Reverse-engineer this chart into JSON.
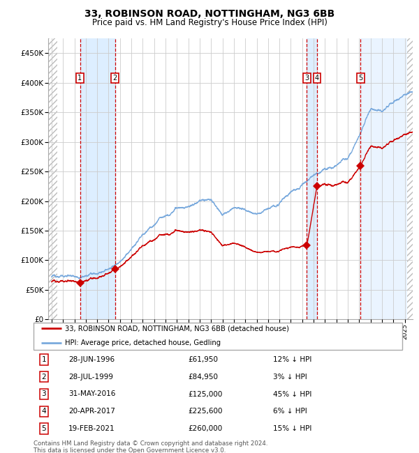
{
  "title1": "33, ROBINSON ROAD, NOTTINGHAM, NG3 6BB",
  "title2": "Price paid vs. HM Land Registry's House Price Index (HPI)",
  "ylabel_ticks": [
    "£0",
    "£50K",
    "£100K",
    "£150K",
    "£200K",
    "£250K",
    "£300K",
    "£350K",
    "£400K",
    "£450K"
  ],
  "ytick_values": [
    0,
    50000,
    100000,
    150000,
    200000,
    250000,
    300000,
    350000,
    400000,
    450000
  ],
  "ylim": [
    0,
    475000
  ],
  "xlim_start": 1993.7,
  "xlim_end": 2025.7,
  "transactions": [
    {
      "num": 1,
      "date_label": "28-JUN-1996",
      "x": 1996.49,
      "price": 61950,
      "pct": "12%"
    },
    {
      "num": 2,
      "date_label": "28-JUL-1999",
      "x": 1999.57,
      "price": 84950,
      "pct": "3%"
    },
    {
      "num": 3,
      "date_label": "31-MAY-2016",
      "x": 2016.41,
      "price": 125000,
      "pct": "45%"
    },
    {
      "num": 4,
      "date_label": "20-APR-2017",
      "x": 2017.3,
      "price": 225600,
      "pct": "6%"
    },
    {
      "num": 5,
      "date_label": "19-FEB-2021",
      "x": 2021.13,
      "price": 260000,
      "pct": "15%"
    }
  ],
  "legend_line1": "33, ROBINSON ROAD, NOTTINGHAM, NG3 6BB (detached house)",
  "legend_line2": "HPI: Average price, detached house, Gedling",
  "footer": "Contains HM Land Registry data © Crown copyright and database right 2024.\nThis data is licensed under the Open Government Licence v3.0.",
  "line_color_red": "#cc0000",
  "line_color_blue": "#7aaadd",
  "bg_highlight_color": "#ddeeff",
  "grid_color": "#cccccc",
  "hatch_color": "#bbbbbb",
  "hpi_anchors": [
    [
      1994.0,
      72000
    ],
    [
      1995.0,
      73500
    ],
    [
      1996.0,
      74500
    ],
    [
      1997.0,
      77000
    ],
    [
      1998.0,
      80000
    ],
    [
      1999.0,
      87000
    ],
    [
      2000.0,
      100000
    ],
    [
      2001.0,
      118000
    ],
    [
      2002.0,
      143000
    ],
    [
      2003.0,
      163000
    ],
    [
      2004.0,
      183000
    ],
    [
      2005.0,
      193000
    ],
    [
      2006.0,
      196000
    ],
    [
      2007.0,
      205000
    ],
    [
      2008.0,
      202000
    ],
    [
      2009.0,
      177000
    ],
    [
      2010.0,
      185000
    ],
    [
      2011.0,
      181000
    ],
    [
      2012.0,
      179000
    ],
    [
      2013.0,
      185000
    ],
    [
      2014.0,
      196000
    ],
    [
      2015.0,
      212000
    ],
    [
      2016.0,
      228000
    ],
    [
      2017.0,
      239000
    ],
    [
      2018.0,
      249000
    ],
    [
      2019.0,
      254000
    ],
    [
      2020.0,
      265000
    ],
    [
      2021.0,
      297000
    ],
    [
      2022.0,
      345000
    ],
    [
      2023.0,
      342000
    ],
    [
      2024.0,
      358000
    ],
    [
      2025.0,
      372000
    ],
    [
      2025.7,
      378000
    ]
  ]
}
